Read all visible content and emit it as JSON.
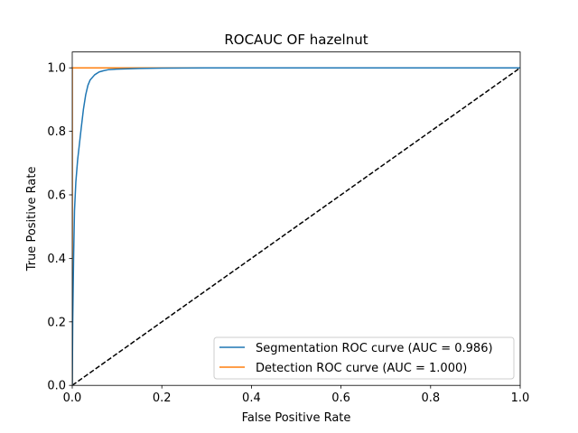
{
  "chart_data": {
    "type": "line",
    "title": "ROCAUC OF hazelnut",
    "xlabel": "False Positive Rate",
    "ylabel": "True Positive Rate",
    "xlim": [
      0,
      1
    ],
    "ylim": [
      0,
      1.05
    ],
    "grid": false,
    "legend_position": "lower-right",
    "x_ticks": [
      0.0,
      0.2,
      0.4,
      0.6,
      0.8,
      1.0
    ],
    "x_tick_labels": [
      "0.0",
      "0.2",
      "0.4",
      "0.6",
      "0.8",
      "1.0"
    ],
    "y_ticks": [
      0.0,
      0.2,
      0.4,
      0.6,
      0.8,
      1.0
    ],
    "y_tick_labels": [
      "0.0",
      "0.2",
      "0.4",
      "0.6",
      "0.8",
      "1.0"
    ],
    "series": [
      {
        "name": "Segmentation ROC curve (AUC = 0.986)",
        "color": "#1f77b4",
        "style": "solid",
        "x": [
          0.0,
          0.001,
          0.003,
          0.005,
          0.008,
          0.012,
          0.016,
          0.02,
          0.025,
          0.03,
          0.035,
          0.04,
          0.05,
          0.06,
          0.07,
          0.08,
          0.1,
          0.15,
          0.2,
          0.3,
          0.5,
          0.7,
          1.0
        ],
        "y": [
          0.0,
          0.2,
          0.4,
          0.55,
          0.64,
          0.71,
          0.76,
          0.81,
          0.87,
          0.915,
          0.945,
          0.962,
          0.978,
          0.987,
          0.991,
          0.994,
          0.996,
          0.998,
          0.999,
          1.0,
          1.0,
          1.0,
          1.0
        ]
      },
      {
        "name": "Detection ROC curve (AUC = 1.000)",
        "color": "#ff7f0e",
        "style": "solid",
        "x": [
          0.0,
          0.0,
          1.0
        ],
        "y": [
          0.0,
          1.0,
          1.0
        ]
      },
      {
        "name": "",
        "color": "#000000",
        "style": "dashed",
        "x": [
          0.0,
          1.0
        ],
        "y": [
          0.0,
          1.0
        ]
      }
    ]
  }
}
